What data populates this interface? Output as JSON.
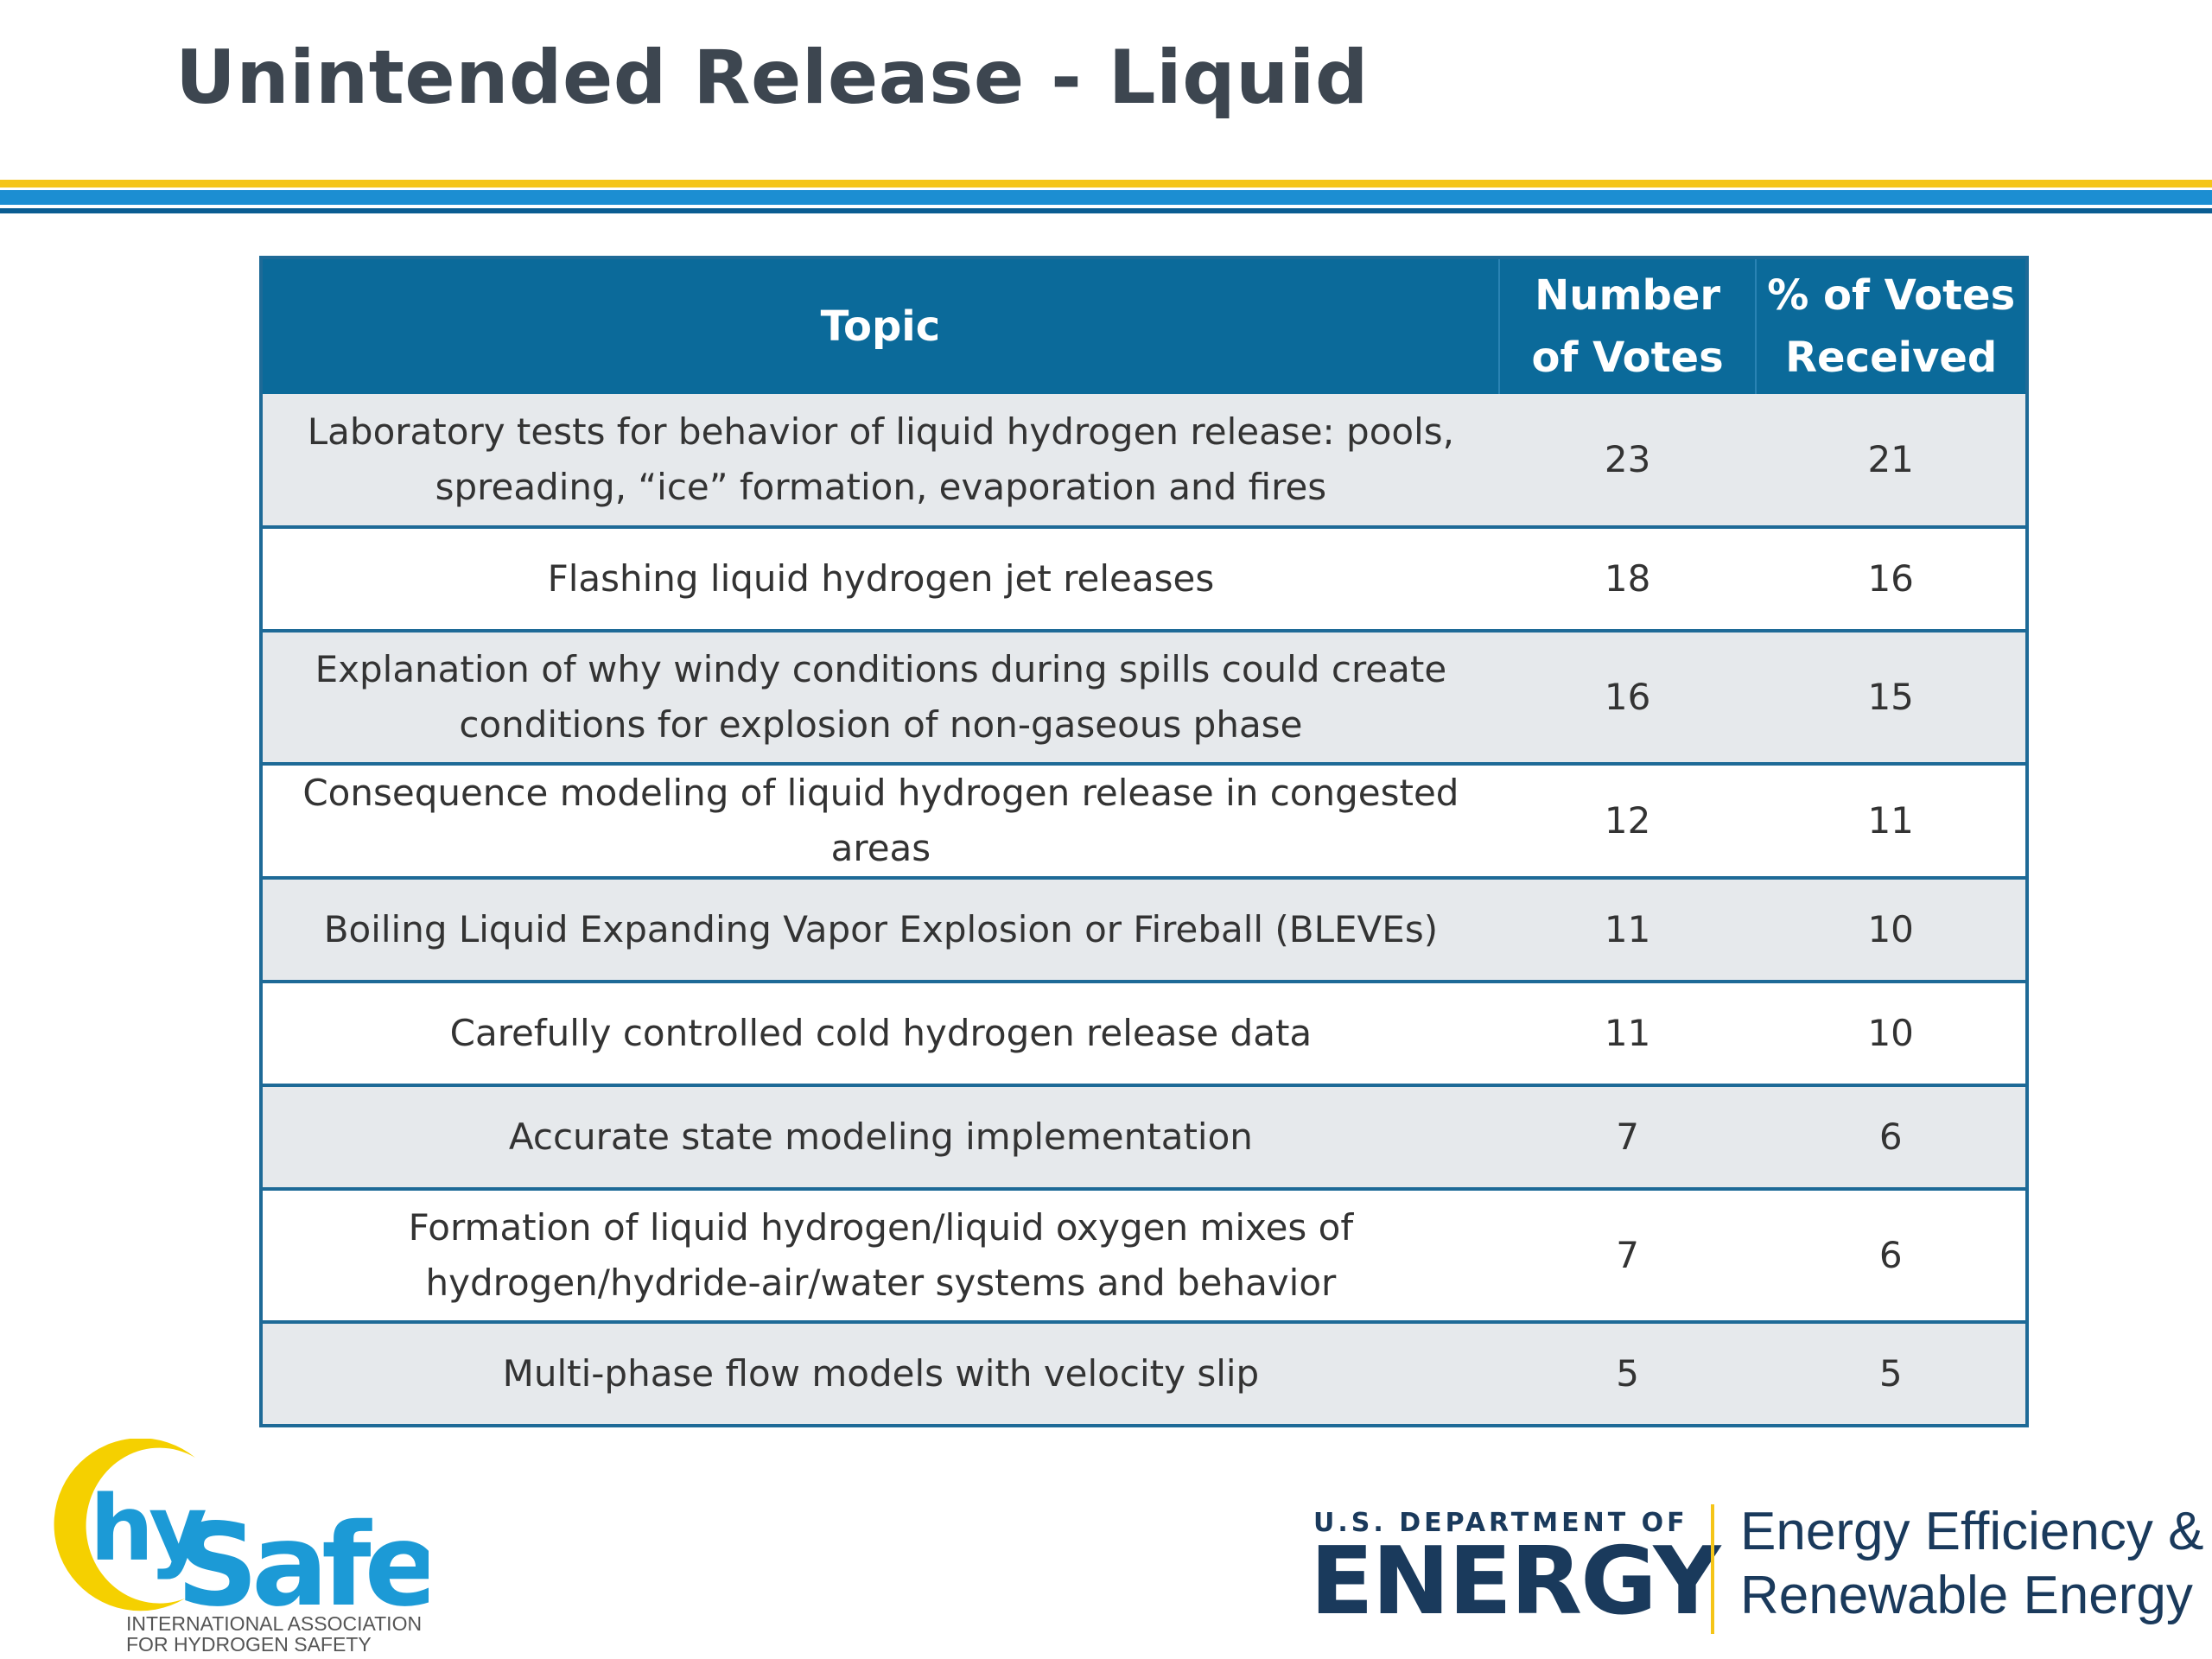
{
  "slide": {
    "title": "Unintended Release - Liquid"
  },
  "table": {
    "headers": {
      "topic": "Topic",
      "votes_line1": "Number",
      "votes_line2": "of Votes",
      "pct_line1": "% of Votes",
      "pct_line2": "Received"
    },
    "rows": [
      {
        "topic_line1": "Laboratory tests for behavior of liquid hydrogen release: pools,",
        "topic_line2": "spreading, “ice” formation, evaporation and fires",
        "votes": "23",
        "percent": "21"
      },
      {
        "topic_line1": "Flashing liquid hydrogen jet releases",
        "topic_line2": "",
        "votes": "18",
        "percent": "16"
      },
      {
        "topic_line1": "Explanation of why windy conditions during spills could create",
        "topic_line2": "conditions for explosion of non-gaseous phase",
        "votes": "16",
        "percent": "15"
      },
      {
        "topic_line1": "Consequence modeling of liquid hydrogen release in congested",
        "topic_line2": "areas",
        "votes": "12",
        "percent": "11"
      },
      {
        "topic_line1": "Boiling Liquid Expanding Vapor Explosion or Fireball (BLEVEs)",
        "topic_line2": "",
        "votes": "11",
        "percent": "10"
      },
      {
        "topic_line1": "Carefully controlled cold hydrogen release data",
        "topic_line2": "",
        "votes": "11",
        "percent": "10"
      },
      {
        "topic_line1": "Accurate state modeling implementation",
        "topic_line2": "",
        "votes": "7",
        "percent": "6"
      },
      {
        "topic_line1": "Formation of liquid hydrogen/liquid oxygen mixes of",
        "topic_line2": "hydrogen/hydride-air/water systems and behavior",
        "votes": "7",
        "percent": "6"
      },
      {
        "topic_line1": "Multi-phase flow models with velocity slip",
        "topic_line2": "",
        "votes": "5",
        "percent": "5"
      }
    ]
  },
  "footer": {
    "hysafe": {
      "logo_hy": "hy",
      "logo_safe": "Safe",
      "tagline_line1": "INTERNATIONAL ASSOCIATION",
      "tagline_line2": "FOR HYDROGEN SAFETY",
      "colors": {
        "yellow": "#f5d000",
        "blue": "#1c9ad6",
        "gray": "#555555"
      }
    },
    "doe": {
      "dept": "U.S. DEPARTMENT OF",
      "energy": "ENERGY",
      "eere_line1": "Energy Efficiency &",
      "eere_line2": "Renewable Energy"
    }
  },
  "colors": {
    "title": "#3d4650",
    "header_bg": "#0b6a9a",
    "row_shade": "#e6e9ec",
    "border": "#1e6a97",
    "accent_yellow": "#f5c518",
    "accent_blue": "#1c8ed2",
    "accent_navy": "#0a5d92"
  }
}
